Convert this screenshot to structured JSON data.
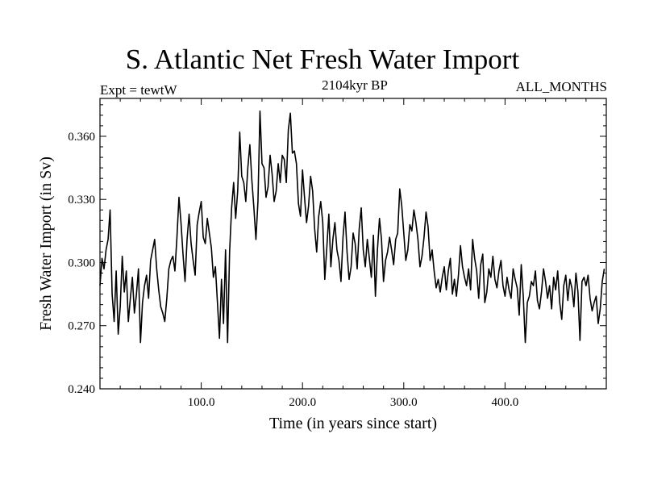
{
  "chart_data": {
    "type": "line",
    "title": "S. Atlantic Net Fresh Water Import",
    "experiment_label": "Expt = tewtW",
    "period_label": "2104kyr BP",
    "months_label": "ALL_MONTHS",
    "xlabel": "Time (in years since start)",
    "ylabel": "Fresh Water Import (in Sv)",
    "xlim": [
      0,
      500
    ],
    "ylim": [
      0.24,
      0.378
    ],
    "x_ticks": [
      100,
      200,
      300,
      400
    ],
    "x_tick_labels": [
      "100.0",
      "200.0",
      "300.0",
      "400.0"
    ],
    "y_ticks": [
      0.24,
      0.27,
      0.3,
      0.33,
      0.36
    ],
    "y_tick_labels": [
      "0.240",
      "0.270",
      "0.300",
      "0.330",
      "0.360"
    ],
    "x_start": 0,
    "x_step": 2,
    "series": [
      {
        "name": "Fresh Water Import",
        "color": "#000000",
        "values": [
          0.289,
          0.302,
          0.297,
          0.306,
          0.311,
          0.325,
          0.285,
          0.272,
          0.296,
          0.266,
          0.279,
          0.303,
          0.286,
          0.296,
          0.272,
          0.283,
          0.293,
          0.276,
          0.285,
          0.297,
          0.262,
          0.281,
          0.289,
          0.294,
          0.283,
          0.301,
          0.306,
          0.311,
          0.297,
          0.287,
          0.279,
          0.276,
          0.272,
          0.283,
          0.297,
          0.301,
          0.303,
          0.296,
          0.312,
          0.331,
          0.319,
          0.304,
          0.291,
          0.311,
          0.323,
          0.309,
          0.301,
          0.294,
          0.318,
          0.324,
          0.329,
          0.312,
          0.309,
          0.321,
          0.314,
          0.307,
          0.293,
          0.298,
          0.281,
          0.264,
          0.292,
          0.271,
          0.306,
          0.262,
          0.305,
          0.326,
          0.338,
          0.321,
          0.334,
          0.362,
          0.341,
          0.338,
          0.329,
          0.345,
          0.356,
          0.339,
          0.326,
          0.311,
          0.329,
          0.372,
          0.347,
          0.345,
          0.331,
          0.336,
          0.351,
          0.342,
          0.329,
          0.334,
          0.347,
          0.338,
          0.351,
          0.349,
          0.338,
          0.363,
          0.371,
          0.352,
          0.353,
          0.347,
          0.328,
          0.322,
          0.344,
          0.331,
          0.319,
          0.327,
          0.341,
          0.334,
          0.316,
          0.305,
          0.322,
          0.329,
          0.319,
          0.292,
          0.307,
          0.323,
          0.298,
          0.311,
          0.319,
          0.306,
          0.301,
          0.291,
          0.312,
          0.324,
          0.305,
          0.292,
          0.298,
          0.314,
          0.309,
          0.297,
          0.316,
          0.326,
          0.306,
          0.298,
          0.311,
          0.302,
          0.293,
          0.313,
          0.284,
          0.306,
          0.321,
          0.311,
          0.291,
          0.301,
          0.305,
          0.312,
          0.306,
          0.299,
          0.311,
          0.314,
          0.335,
          0.327,
          0.314,
          0.301,
          0.306,
          0.318,
          0.315,
          0.325,
          0.319,
          0.311,
          0.298,
          0.303,
          0.312,
          0.324,
          0.317,
          0.301,
          0.306,
          0.296,
          0.288,
          0.292,
          0.286,
          0.293,
          0.298,
          0.287,
          0.296,
          0.302,
          0.285,
          0.292,
          0.284,
          0.294,
          0.308,
          0.298,
          0.293,
          0.289,
          0.297,
          0.287,
          0.311,
          0.302,
          0.296,
          0.283,
          0.299,
          0.304,
          0.281,
          0.286,
          0.297,
          0.293,
          0.303,
          0.292,
          0.288,
          0.296,
          0.301,
          0.289,
          0.284,
          0.293,
          0.287,
          0.283,
          0.297,
          0.292,
          0.288,
          0.275,
          0.299,
          0.284,
          0.262,
          0.281,
          0.284,
          0.291,
          0.289,
          0.296,
          0.282,
          0.278,
          0.286,
          0.297,
          0.291,
          0.283,
          0.289,
          0.278,
          0.293,
          0.287,
          0.296,
          0.281,
          0.273,
          0.289,
          0.294,
          0.282,
          0.292,
          0.288,
          0.279,
          0.295,
          0.286,
          0.263,
          0.291,
          0.293,
          0.289,
          0.294,
          0.283,
          0.277,
          0.281,
          0.284,
          0.271,
          0.278,
          0.291,
          0.297
        ]
      }
    ]
  }
}
